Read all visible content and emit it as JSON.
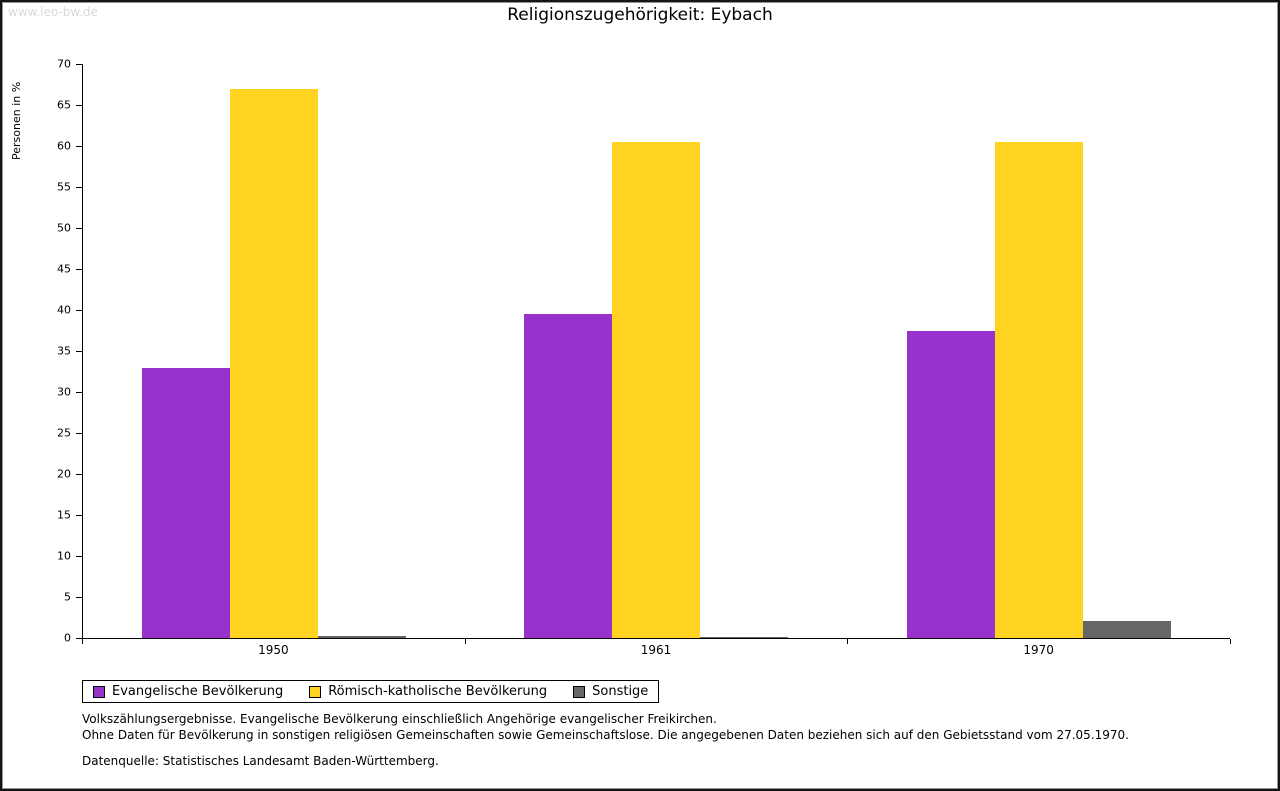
{
  "watermark": "www.leo-bw.de",
  "title": "Religionszugehörigkeit: Eybach",
  "chart_data": {
    "type": "bar",
    "title": "Religionszugehörigkeit: Eybach",
    "xlabel": "",
    "ylabel": "Personen in %",
    "ylim": [
      0,
      70
    ],
    "ytick_step": 5,
    "grid": false,
    "legend_position": "bottom-left",
    "categories": [
      "1950",
      "1961",
      "1970"
    ],
    "series": [
      {
        "name": "Evangelische Bevölkerung",
        "color": "#9932CC",
        "values": [
          32.9,
          39.5,
          37.4
        ]
      },
      {
        "name": "Römisch-katholische Bevölkerung",
        "color": "#FFD320",
        "values": [
          66.9,
          60.5,
          60.5
        ]
      },
      {
        "name": "Sonstige",
        "color": "#666666",
        "values": [
          0.3,
          0.1,
          2.1
        ]
      }
    ]
  },
  "footer": {
    "line1": "Volkszählungsergebnisse. Evangelische Bevölkerung einschließlich Angehörige evangelischer Freikirchen.",
    "line2": "Ohne Daten für Bevölkerung in sonstigen religiösen Gemeinschaften sowie Gemeinschaftslose. Die angegebenen Daten beziehen sich auf den Gebietsstand vom 27.05.1970.",
    "line3": "Datenquelle: Statistisches Landesamt Baden-Württemberg."
  }
}
